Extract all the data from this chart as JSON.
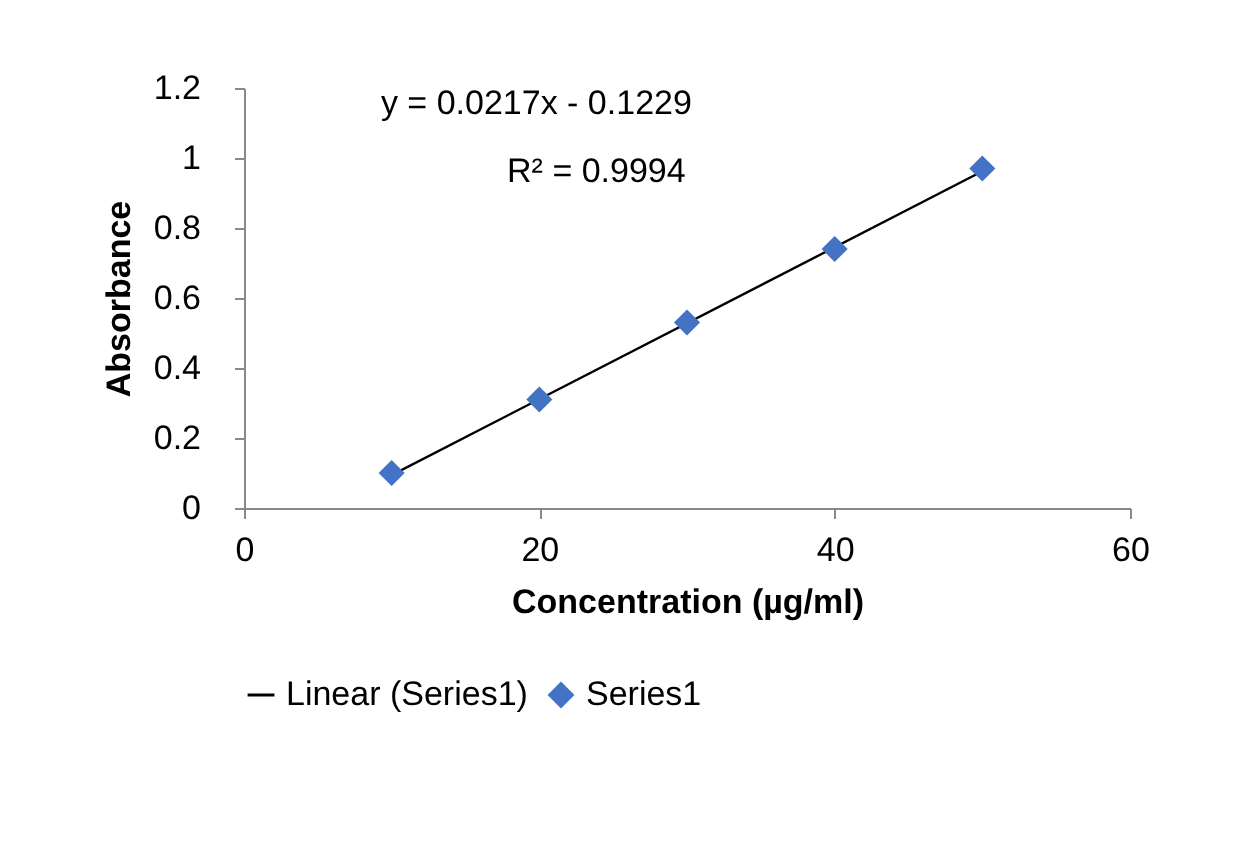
{
  "chart_data": {
    "type": "scatter",
    "xlabel": "Concentration (µg/ml)",
    "ylabel": "Absorbance",
    "series": [
      {
        "name": "Series1",
        "type": "scatter",
        "color": "#4472c4",
        "marker": "diamond",
        "x": [
          10,
          20,
          30,
          40,
          50
        ],
        "values": [
          0.1,
          0.31,
          0.53,
          0.74,
          0.97
        ]
      },
      {
        "name": "Linear (Series1)",
        "type": "line",
        "color": "#000000",
        "marker": "none",
        "line_style": "solid",
        "x": [
          10,
          50
        ],
        "values": [
          0.094,
          0.962
        ]
      }
    ],
    "xlim": [
      0,
      60
    ],
    "xticks": [
      0,
      20,
      40,
      60
    ],
    "ylim": [
      0,
      1.2
    ],
    "yticks": [
      0,
      0.2,
      0.4,
      0.6,
      0.8,
      1,
      1.2
    ],
    "annotations": [
      "y = 0.0217x - 0.1229",
      "R² = 0.9994"
    ],
    "grid": false,
    "legend": "bottom"
  }
}
